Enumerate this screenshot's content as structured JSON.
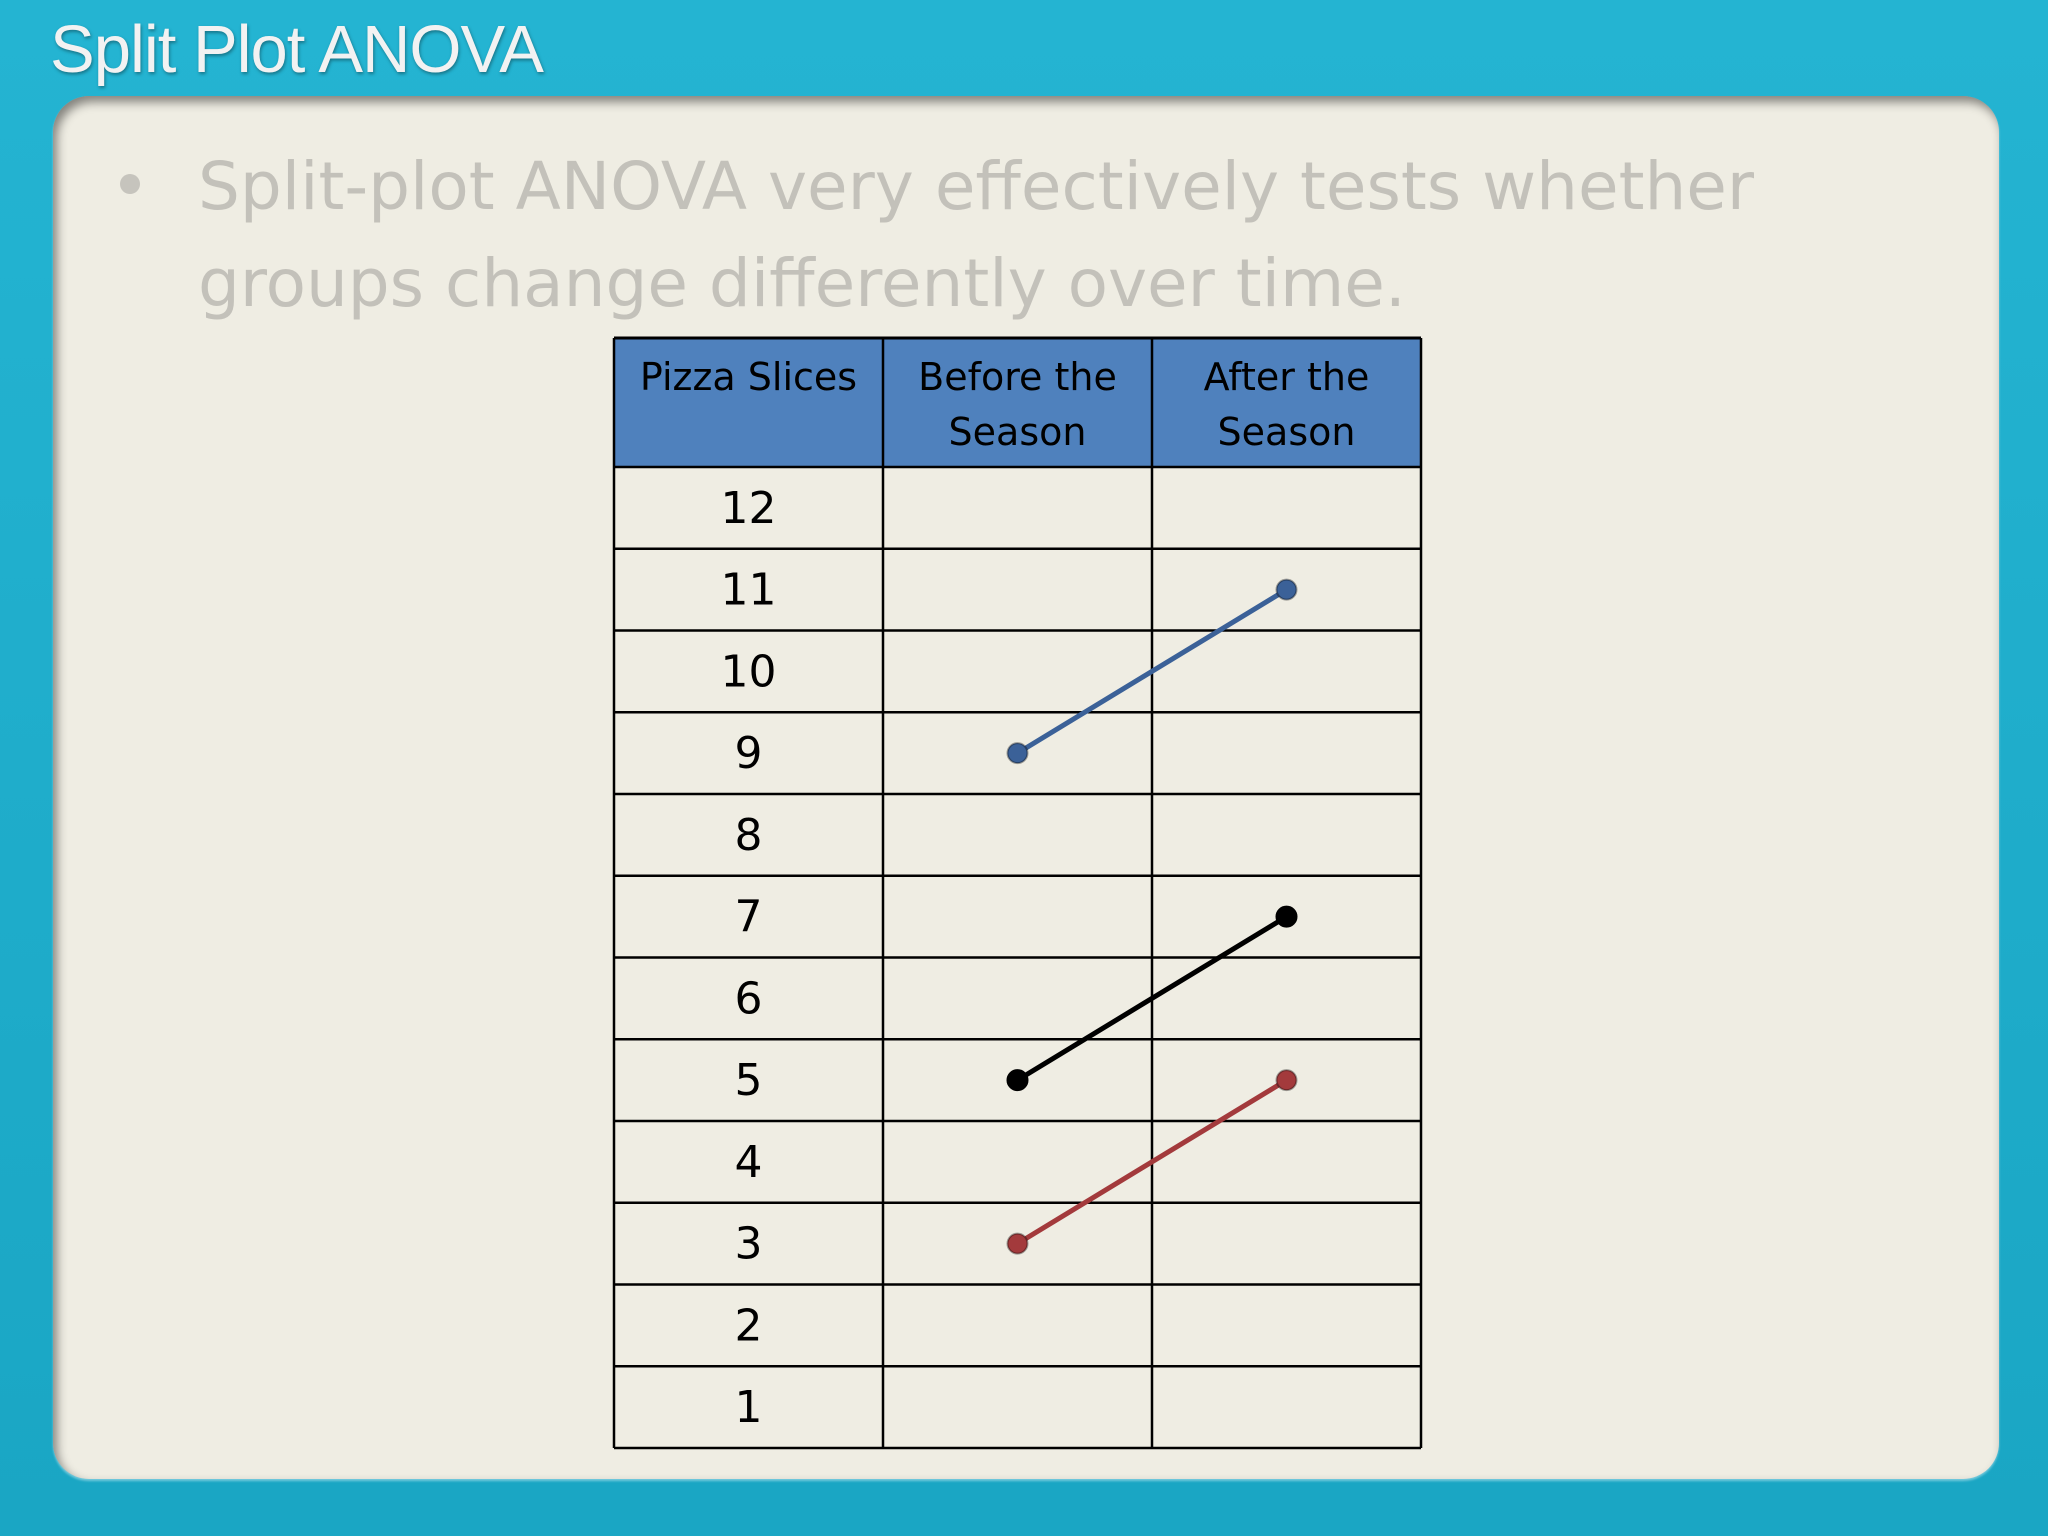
{
  "slide": {
    "title": "Split Plot ANOVA",
    "bullet": "Split-plot ANOVA very effectively tests whether groups change differently over time."
  },
  "colors": {
    "background": "#1fafcd",
    "panel": "#efede3",
    "header_fill": "#4f81bd",
    "blue_series": "#3b6198",
    "black_series": "#000000",
    "red_series": "#a33a3c"
  },
  "chart_data": {
    "type": "line",
    "table_headers": [
      "Pizza Slices",
      "Before the Season",
      "After the Season"
    ],
    "header_lines": [
      [
        "Pizza Slices"
      ],
      [
        "Before the",
        "Season"
      ],
      [
        "After the",
        "Season"
      ]
    ],
    "row_labels": [
      "12",
      "11",
      "10",
      "9",
      "8",
      "7",
      "6",
      "5",
      "4",
      "3",
      "2",
      "1"
    ],
    "categories": [
      "Before the Season",
      "After the Season"
    ],
    "ylim": [
      1,
      12
    ],
    "series": [
      {
        "color": "#3b6198",
        "values": [
          9,
          11
        ]
      },
      {
        "color": "#000000",
        "values": [
          5,
          7
        ]
      },
      {
        "color": "#a33a3c",
        "values": [
          3,
          5
        ]
      }
    ]
  }
}
